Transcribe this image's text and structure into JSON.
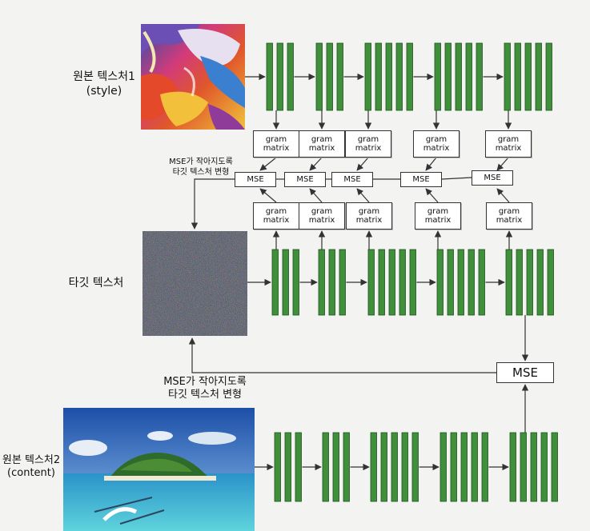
{
  "labels": {
    "source_style_line1": "원본 텍스처1",
    "source_style_line2": "(style)",
    "target": "타깃 텍스처",
    "source_content_line1": "원본 텍스처2",
    "source_content_line2": "(content)",
    "style_note_line1": "MSE가 작아지도록",
    "style_note_line2": "타깃 텍스처 변형",
    "content_note_line1": "MSE가 작아지도록",
    "content_note_line2": "타깃 텍스처 변형"
  },
  "gram_matrix": {
    "line1": "gram",
    "line2": "matrix"
  },
  "mse_label": "MSE",
  "colors": {
    "layer_fill": "#3f8f3b",
    "layer_edge": "#1e4f1e",
    "arrow": "#333333",
    "box_border": "#333333"
  },
  "network": {
    "layer_blocks": [
      3,
      3,
      5,
      5,
      5
    ]
  }
}
